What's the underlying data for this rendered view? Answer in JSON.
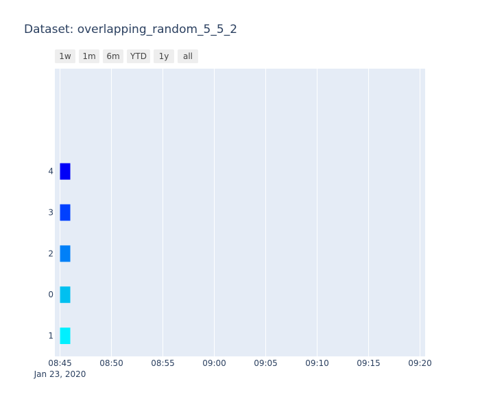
{
  "title": "Dataset: overlapping_random_5_5_2",
  "range_buttons": [
    "1w",
    "1m",
    "6m",
    "YTD",
    "1y",
    "all"
  ],
  "chart_data": {
    "type": "bar",
    "orientation": "horizontal",
    "title": "Dataset: overlapping_random_5_5_2",
    "categories": [
      "1",
      "0",
      "2",
      "3",
      "4"
    ],
    "x_axis": {
      "type": "date",
      "range": [
        "2020-01-23 08:44:30",
        "2020-01-23 09:20:30"
      ],
      "tick_values": [
        "2020-01-23 08:45",
        "2020-01-23 08:50",
        "2020-01-23 08:55",
        "2020-01-23 09:00",
        "2020-01-23 09:05",
        "2020-01-23 09:10",
        "2020-01-23 09:15",
        "2020-01-23 09:20"
      ],
      "tick_labels": [
        "08:45",
        "08:50",
        "08:55",
        "09:00",
        "09:05",
        "09:10",
        "09:15",
        "09:20"
      ],
      "date_label": "Jan 23, 2020"
    },
    "y_axis": {
      "range": [
        -0.5,
        6.5
      ]
    },
    "bars": [
      {
        "category": "1",
        "start": "2020-01-23 08:45:00",
        "end": "2020-01-23 08:46:00",
        "color": "#00f0ff"
      },
      {
        "category": "0",
        "start": "2020-01-23 08:45:00",
        "end": "2020-01-23 08:46:00",
        "color": "#00c0f0"
      },
      {
        "category": "2",
        "start": "2020-01-23 08:45:00",
        "end": "2020-01-23 08:46:00",
        "color": "#0080f8"
      },
      {
        "category": "3",
        "start": "2020-01-23 08:45:00",
        "end": "2020-01-23 08:46:00",
        "color": "#0040ff"
      },
      {
        "category": "4",
        "start": "2020-01-23 08:45:00",
        "end": "2020-01-23 08:46:00",
        "color": "#0000f8"
      }
    ],
    "grid": true,
    "plot_background": "#e5ecf6",
    "grid_color": "#ffffff"
  }
}
